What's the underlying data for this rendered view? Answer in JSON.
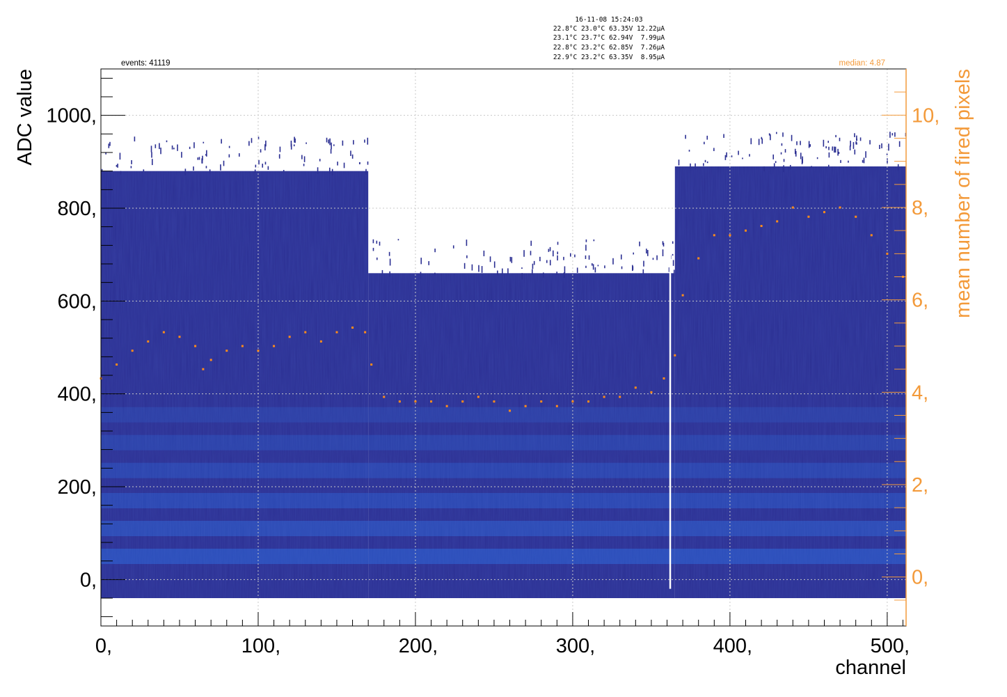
{
  "header": {
    "timestamp": "16-11-08 15:24:03",
    "readings": [
      "22.8°C 23.0°C 63.35V 12.22µA",
      "23.1°C 23.7°C 62.94V  7.99µA",
      "22.8°C 23.2°C 62.85V  7.26µA",
      "22.9°C 23.2°C 63.35V  8.95µA"
    ],
    "events_label": "events: 41119",
    "median_label": "median: 4.87"
  },
  "colors": {
    "histogram_base": "#2b2f92",
    "band": "#2a66d8",
    "secondary_axis": "#f39a3a",
    "marker": "#ff8c1a",
    "grid": "#c8c8c8"
  },
  "chart_data": {
    "type": "heatmap",
    "xlabel": "channel",
    "ylabel": "ADC value",
    "y2label": "mean number of fired pixels",
    "xlim": [
      0,
      512
    ],
    "ylim": [
      -100,
      1100
    ],
    "y2lim": [
      -1.06,
      11.0
    ],
    "x_ticks": [
      "0,",
      "100,",
      "200,",
      "300,",
      "400,",
      "500,"
    ],
    "y_ticks": [
      "0,",
      "200,",
      "400,",
      "600,",
      "800,",
      "1000,"
    ],
    "y2_ticks": [
      "0,",
      "2,",
      "4,",
      "6,",
      "8,",
      "10,"
    ],
    "x_tick_values": [
      0,
      100,
      200,
      300,
      400,
      500
    ],
    "y_tick_values": [
      0,
      200,
      400,
      600,
      800,
      1000
    ],
    "y2_tick_values": [
      0,
      2,
      4,
      6,
      8,
      10
    ],
    "grid": true,
    "heatmap_regions": [
      {
        "x": [
          0,
          170
        ],
        "y": [
          -40,
          880
        ]
      },
      {
        "x": [
          170,
          365
        ],
        "y": [
          -40,
          660
        ]
      },
      {
        "x": [
          365,
          512
        ],
        "y": [
          -40,
          890
        ]
      }
    ],
    "band_centers_adc": [
      50,
      110,
      170,
      235,
      295,
      355
    ],
    "dead_channel": 362,
    "series": [
      {
        "name": "mean number of fired pixels",
        "x": [
          0,
          10,
          20,
          30,
          40,
          50,
          60,
          65,
          70,
          80,
          90,
          100,
          110,
          120,
          130,
          140,
          150,
          160,
          168,
          172,
          180,
          190,
          200,
          210,
          220,
          230,
          240,
          250,
          260,
          270,
          280,
          290,
          300,
          310,
          320,
          330,
          340,
          350,
          358,
          365,
          370,
          380,
          390,
          400,
          410,
          420,
          430,
          440,
          450,
          460,
          470,
          480,
          490,
          500,
          510
        ],
        "y": [
          4.3,
          4.6,
          4.9,
          5.1,
          5.3,
          5.2,
          5.0,
          4.5,
          4.7,
          4.9,
          5.0,
          4.9,
          5.0,
          5.2,
          5.3,
          5.1,
          5.3,
          5.4,
          5.3,
          4.6,
          3.9,
          3.8,
          3.8,
          3.8,
          3.7,
          3.8,
          3.9,
          3.8,
          3.6,
          3.7,
          3.8,
          3.7,
          3.8,
          3.8,
          3.9,
          3.9,
          4.1,
          4.0,
          4.3,
          4.8,
          6.1,
          6.9,
          7.4,
          7.4,
          7.5,
          7.6,
          7.7,
          8.0,
          7.8,
          7.9,
          8.0,
          7.8,
          7.4,
          7.0,
          6.5
        ]
      }
    ]
  }
}
